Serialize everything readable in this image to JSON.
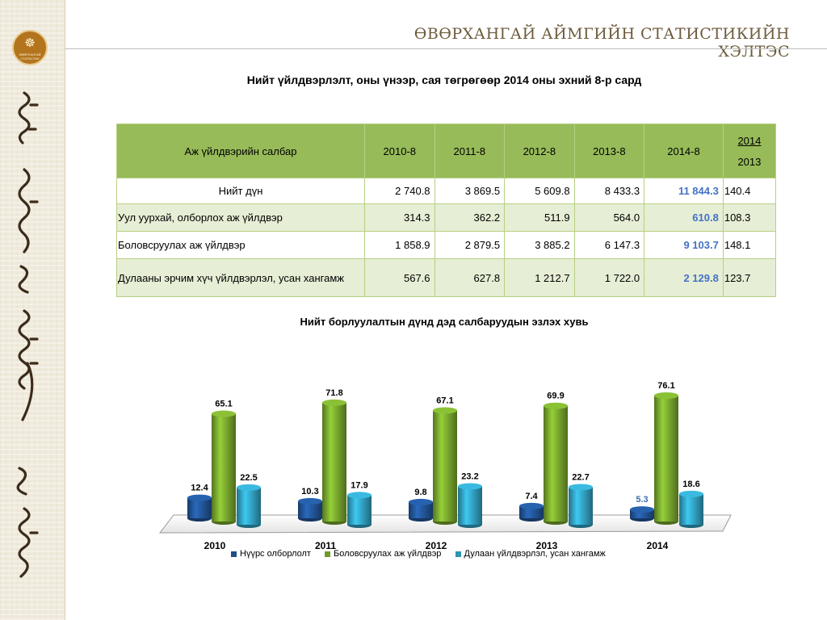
{
  "header": {
    "title": "ӨВӨРХАНГАЙ АЙМГИЙН СТАТИСТИКИЙН ХЭЛТЭС"
  },
  "logo": {
    "text": "ӨВӨРХАНГАЙ СТАТИСТИК"
  },
  "table_title": "Нийт  үйлдвэрлэлт, оны үнээр, сая төгрөгөөр  2014 оны эхний 8-р сард",
  "table": {
    "headers": {
      "sector": "Аж үйлдвэрийн салбар",
      "years": [
        "2010-8",
        "2011-8",
        "2012-8",
        "2013-8",
        "2014-8"
      ],
      "ratio_top": "2014",
      "ratio_bottom": "2013"
    },
    "rows": [
      {
        "name": "Нийт дүн",
        "values": [
          "2 740.8",
          "3 869.5",
          "5 609.8",
          "8 433.3",
          "11 844.3"
        ],
        "ratio": "140.4"
      },
      {
        "name": "Уул уурхай, олборлох аж үйлдвэр",
        "values": [
          "314.3",
          "362.2",
          "511.9",
          "564.0",
          "610.8"
        ],
        "ratio": "108.3"
      },
      {
        "name": "Боловсруулах аж үйлдвэр",
        "values": [
          "1 858.9",
          "2 879.5",
          "3 885.2",
          "6 147.3",
          "9 103.7"
        ],
        "ratio": "148.1"
      },
      {
        "name": " Дулааны эрчим хүч үйлдвэрлэл, усан хангамж",
        "values": [
          "567.6",
          "627.8",
          "1 212.7",
          "1 722.0",
          "2 129.8"
        ],
        "ratio": "123.7"
      }
    ]
  },
  "chart_title": "Нийт борлуулалтын дүнд дэд салбаруудын эзлэх хувь",
  "chart_data": {
    "type": "bar",
    "categories": [
      "2010",
      "2011",
      "2012",
      "2013",
      "2014"
    ],
    "series": [
      {
        "name": "Нүүрс олборлолт",
        "values": [
          12.4,
          10.3,
          9.8,
          7.4,
          5.3
        ],
        "color": "#1f4e8c"
      },
      {
        "name": "Боловсруулах аж үйлдвэр",
        "values": [
          65.1,
          71.8,
          67.1,
          69.9,
          76.1
        ],
        "color": "#6f9a2a"
      },
      {
        "name": "Дулаан үйлдвэрлэл, усан хангамж",
        "values": [
          22.5,
          17.9,
          23.2,
          22.7,
          18.6
        ],
        "color": "#2e95b3"
      }
    ],
    "ylim": [
      0,
      80
    ],
    "grid": false,
    "legend_position": "bottom",
    "label_colors": {
      "default": "#000000",
      "highlight": "#3a6fb0"
    }
  }
}
